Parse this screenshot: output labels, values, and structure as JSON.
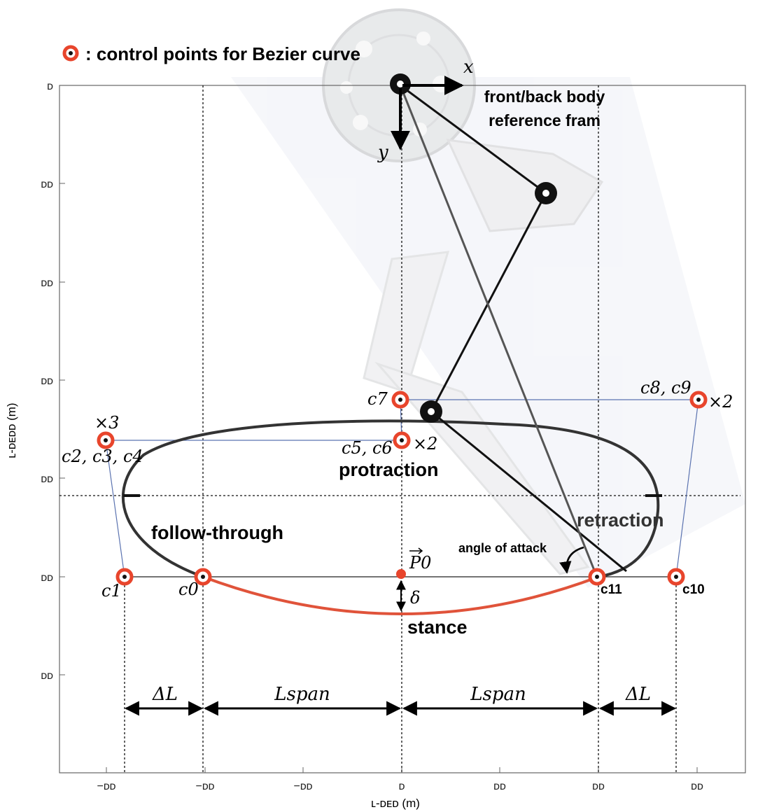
{
  "legend": {
    "text": ": control points for Bezier curve",
    "marker": "control-point-marker"
  },
  "axes": {
    "xlabel": "ʟ-ᴅᴇᴅ (m)",
    "ylabel": "ʟ-ᴅᴇᴅᴅ (m)",
    "x_ticks": [
      "−ᴅᴅ",
      "−ᴅᴅ",
      "−ᴅᴅ",
      "ᴅ",
      "ᴅᴅ",
      "ᴅᴅ",
      "ᴅᴅ"
    ],
    "y_ticks": [
      "ᴅ",
      "ᴅᴅ",
      "ᴅᴅ",
      "ᴅᴅ",
      "ᴅᴅ",
      "ᴅᴅ",
      "ᴅᴅ"
    ]
  },
  "frame": {
    "x_label": "x",
    "y_label": "y",
    "title_line1": "front/back body",
    "title_line2": "reference fram"
  },
  "points": {
    "c0": "c0",
    "c1": "c1",
    "c234": "c2, c3, c4",
    "times3": "×3",
    "c56": "c5, c6",
    "times2a": "×2",
    "c7": "c7",
    "c89": "c8, c9",
    "times2b": "×2",
    "c10": "c10",
    "c11": "c11"
  },
  "phases": {
    "protraction": "protraction",
    "follow_through": "follow-through",
    "retraction": "retraction",
    "stance": "stance"
  },
  "annotations": {
    "p0": "P0",
    "delta": "δ",
    "angle_of_attack": "angle of attack",
    "delta_l": "ΔL",
    "l_span": "Lspan"
  },
  "colors": {
    "control_point": "#e8452c",
    "stance_curve": "#e0533a",
    "swing_curve": "#333333",
    "polygon": "#5b73b0"
  }
}
